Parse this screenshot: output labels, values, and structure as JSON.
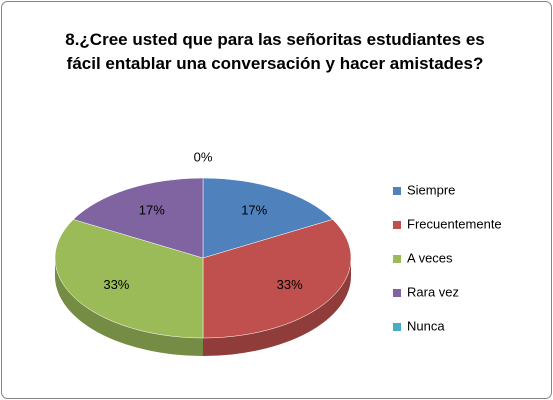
{
  "chart_data": {
    "type": "pie",
    "title": "8.¿Cree usted que para las señoritas estudiantes es fácil entablar una conversación y hacer amistades?",
    "categories": [
      "Siempre",
      "Frecuentemente",
      "A veces",
      "Rara vez",
      "Nunca"
    ],
    "values": [
      17,
      33,
      33,
      17,
      0
    ],
    "value_labels": [
      "17%",
      "33%",
      "33%",
      "17%",
      "0%"
    ],
    "colors": [
      "#4f81bd",
      "#c0504d",
      "#9bbb59",
      "#8064a2",
      "#4bacc6"
    ],
    "legend": "right"
  }
}
